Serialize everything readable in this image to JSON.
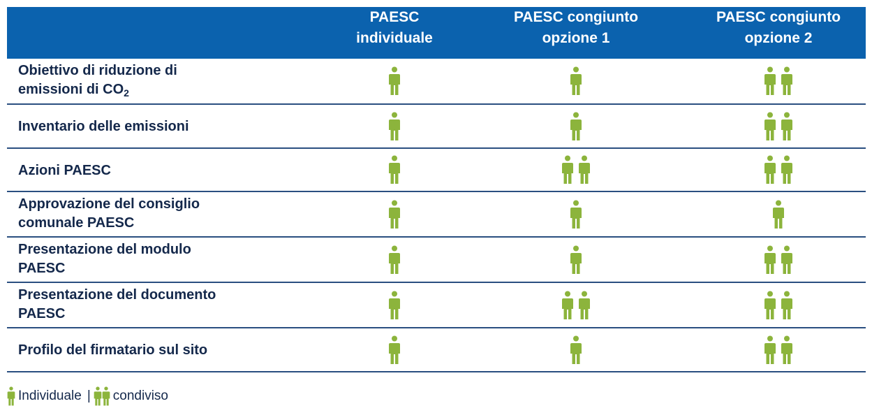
{
  "table": {
    "columns": [
      [
        "PAESC",
        "individuale"
      ],
      [
        "PAESC congiunto",
        "opzione 1"
      ],
      [
        "PAESC congiunto",
        "opzione 2"
      ]
    ],
    "rows": [
      {
        "label": [
          "Obiettivo di riduzione di",
          "emissioni di CO"
        ],
        "label_sub": "2",
        "cells": [
          1,
          1,
          2
        ]
      },
      {
        "label": [
          "Inventario delle emissioni"
        ],
        "cells": [
          1,
          1,
          2
        ]
      },
      {
        "label": [
          "Azioni PAESC"
        ],
        "cells": [
          1,
          2,
          2
        ]
      },
      {
        "label": [
          "Approvazione del consiglio",
          "comunale PAESC"
        ],
        "cells": [
          1,
          1,
          1
        ]
      },
      {
        "label": [
          "Presentazione del modulo",
          "PAESC"
        ],
        "cells": [
          1,
          1,
          2
        ]
      },
      {
        "label": [
          "Presentazione del documento",
          "PAESC"
        ],
        "cells": [
          1,
          2,
          2
        ]
      },
      {
        "label": [
          "Profilo del firmatario sul sito"
        ],
        "cells": [
          1,
          1,
          2
        ]
      }
    ]
  },
  "legend": {
    "items": [
      {
        "count": 1,
        "label": "Individuale"
      },
      {
        "count": 2,
        "label": "condiviso"
      }
    ],
    "separator": "|"
  }
}
